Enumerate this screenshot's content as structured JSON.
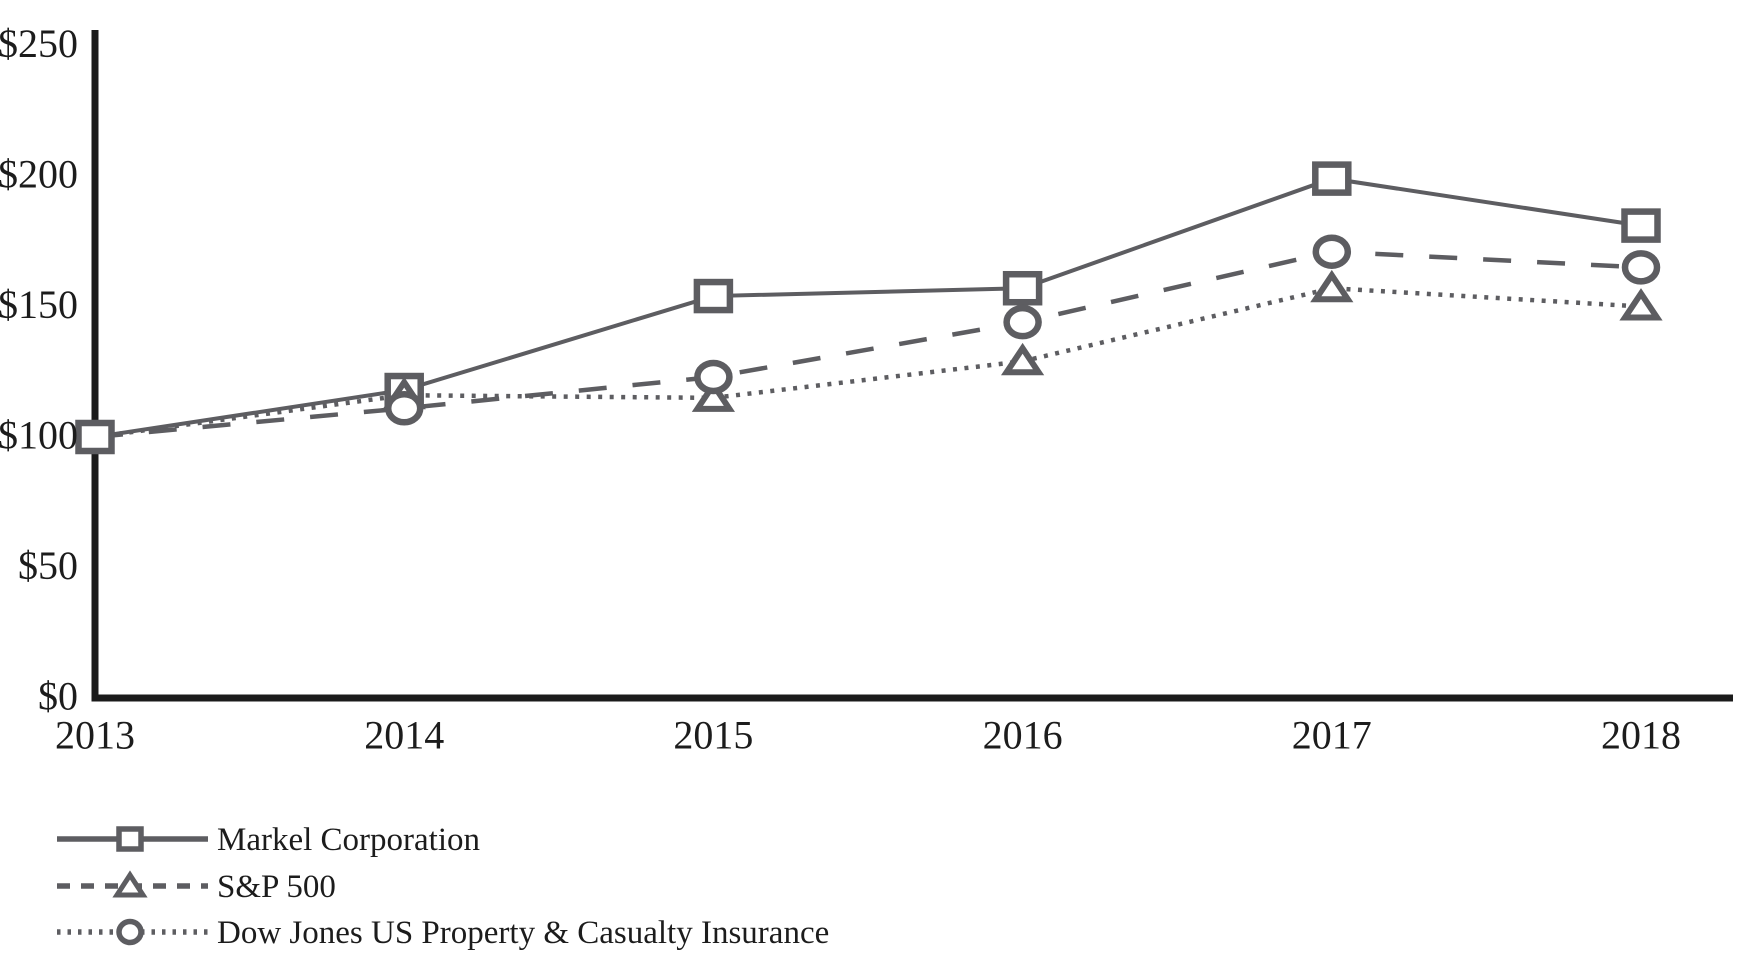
{
  "chart_data": {
    "type": "line",
    "title": "",
    "xlabel": "",
    "ylabel": "",
    "x_labels": [
      "2013",
      "2014",
      "2015",
      "2016",
      "2017",
      "2018"
    ],
    "y_ticks": [
      "$0",
      "$50",
      "$100",
      "$150",
      "$200",
      "$250"
    ],
    "y_tick_values": [
      0,
      50,
      100,
      150,
      200,
      250
    ],
    "ylim": [
      0,
      250
    ],
    "grid": false,
    "legend_position": "bottom-left",
    "series": [
      {
        "name": "Markel Corporation",
        "marker": "square",
        "plot_line_style": "solid",
        "legend_line_style": "solid",
        "values": [
          100,
          118,
          154,
          157,
          199,
          181
        ]
      },
      {
        "name": "S&P 500",
        "marker": "triangle",
        "plot_line_style": "dotted",
        "legend_line_style": "dashed",
        "values": [
          100,
          116,
          115,
          129,
          157,
          150
        ]
      },
      {
        "name": "Dow Jones US Property & Casualty Insurance",
        "marker": "circle",
        "plot_line_style": "dashed",
        "legend_line_style": "dotted",
        "values": [
          100,
          111,
          123,
          144,
          171,
          165
        ]
      }
    ],
    "colors": {
      "series": "#5d5d61",
      "axis": "#1b1b1b",
      "text": "#1c1c1c",
      "marker_fill": "#ffffff",
      "background": "#ffffff"
    }
  }
}
